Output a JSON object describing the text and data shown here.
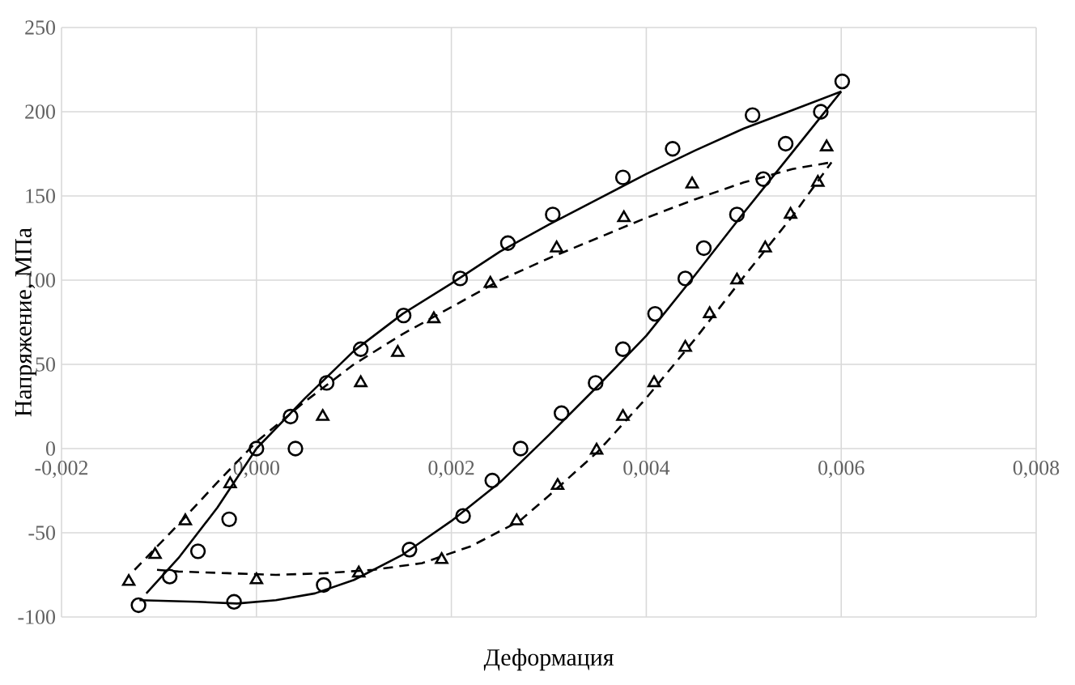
{
  "chart_data": {
    "type": "scatter",
    "xlabel": "Деформация",
    "ylabel": "Напряжение, МПа",
    "xlim": [
      -0.002,
      0.008
    ],
    "ylim": [
      -100,
      250
    ],
    "xticks": [
      {
        "value": -0.002,
        "label": "-0,002"
      },
      {
        "value": 0,
        "label": "0,000"
      },
      {
        "value": 0.002,
        "label": "0,002"
      },
      {
        "value": 0.004,
        "label": "0,004"
      },
      {
        "value": 0.006,
        "label": "0,006"
      },
      {
        "value": 0.008,
        "label": "0,008"
      }
    ],
    "yticks": [
      -100,
      -50,
      0,
      50,
      100,
      150,
      200,
      250
    ],
    "grid": true,
    "series": [
      {
        "marker": "circle",
        "color": "#000000",
        "x": [
          -0.00121,
          -0.00089,
          -0.0006,
          -0.00028,
          0.0,
          0.0004,
          0.00035,
          0.00072,
          0.00107,
          0.00151,
          0.00209,
          0.00258,
          0.00304,
          0.00376,
          0.00427,
          0.00509,
          0.00601,
          -0.00023,
          0.00069,
          0.00157,
          0.00212,
          0.00242,
          0.00271,
          0.00313,
          0.00348,
          0.00376,
          0.00409,
          0.0044,
          0.00459,
          0.00493,
          0.0052,
          0.00543,
          0.00579
        ],
        "values": [
          -93,
          -76,
          -61,
          -42,
          0,
          0,
          19,
          39,
          59,
          79,
          101,
          122,
          139,
          161,
          178,
          198,
          218,
          -91,
          -81,
          -60,
          -40,
          -19,
          0,
          21,
          39,
          59,
          80,
          101,
          119,
          139,
          160,
          181,
          200
        ]
      },
      {
        "type": "line",
        "marker": "none",
        "line_style": "solid",
        "color": "#000000",
        "x": [
          -0.0012,
          -0.0006,
          -0.0002,
          0.0002,
          0.0006,
          0.001,
          0.0015,
          0.002,
          0.0025,
          0.003,
          0.0035,
          0.004,
          0.0045,
          0.005,
          0.0055,
          0.006
        ],
        "values": [
          -90,
          -91,
          -92,
          -90,
          -86,
          -78,
          -63,
          -43,
          -20,
          8,
          37,
          67,
          103,
          140,
          176,
          212
        ]
      },
      {
        "type": "line",
        "marker": "none",
        "line_style": "solid",
        "color": "#000000",
        "x": [
          -0.00113,
          -0.0008,
          -0.0004,
          0.0,
          0.0005,
          0.001,
          0.0015,
          0.002,
          0.0025,
          0.003,
          0.0035,
          0.004,
          0.0045,
          0.005,
          0.0055,
          0.006
        ],
        "values": [
          -86,
          -65,
          -35,
          0,
          30,
          58,
          80,
          98,
          117,
          133,
          148,
          163,
          177,
          190,
          201,
          212
        ]
      },
      {
        "marker": "triangle",
        "color": "#000000",
        "x": [
          -0.00131,
          -0.00104,
          -0.00073,
          -0.00027,
          0.0,
          0.00068,
          0.00107,
          0.00145,
          0.00182,
          0.0024,
          0.00308,
          0.00377,
          0.00447,
          0.00585,
          0.00105,
          0.0019,
          0.00267,
          0.00309,
          0.00349,
          0.00376,
          0.00408,
          0.0044,
          0.00465,
          0.00493,
          0.00522,
          0.00548,
          0.00576
        ],
        "values": [
          -79,
          -63,
          -43,
          -21,
          -78,
          19,
          39,
          57,
          77,
          98,
          119,
          137,
          157,
          179,
          -74,
          -66,
          -43,
          -22,
          -1,
          19,
          39,
          60,
          80,
          100,
          119,
          139,
          158
        ]
      },
      {
        "type": "line",
        "marker": "none",
        "line_style": "dashed",
        "color": "#000000",
        "x": [
          -0.00102,
          -0.0008,
          -0.0003,
          0.0002,
          0.0007,
          0.0012,
          0.0017,
          0.0022,
          0.0027,
          0.003,
          0.0035,
          0.004,
          0.0045,
          0.005,
          0.0055,
          0.0059
        ],
        "values": [
          -72,
          -73,
          -74,
          -75,
          -74,
          -72,
          -68,
          -58,
          -43,
          -28,
          -2,
          30,
          65,
          102,
          138,
          170
        ]
      },
      {
        "type": "line",
        "marker": "none",
        "line_style": "dashed",
        "color": "#000000",
        "x": [
          -0.00125,
          -0.0008,
          -0.0004,
          0.0,
          0.0005,
          0.001,
          0.0015,
          0.002,
          0.0025,
          0.003,
          0.0035,
          0.004,
          0.0045,
          0.005,
          0.0055,
          0.0059
        ],
        "values": [
          -72,
          -45,
          -20,
          4,
          28,
          50,
          68,
          84,
          100,
          113,
          125,
          137,
          148,
          158,
          166,
          170
        ]
      }
    ]
  }
}
